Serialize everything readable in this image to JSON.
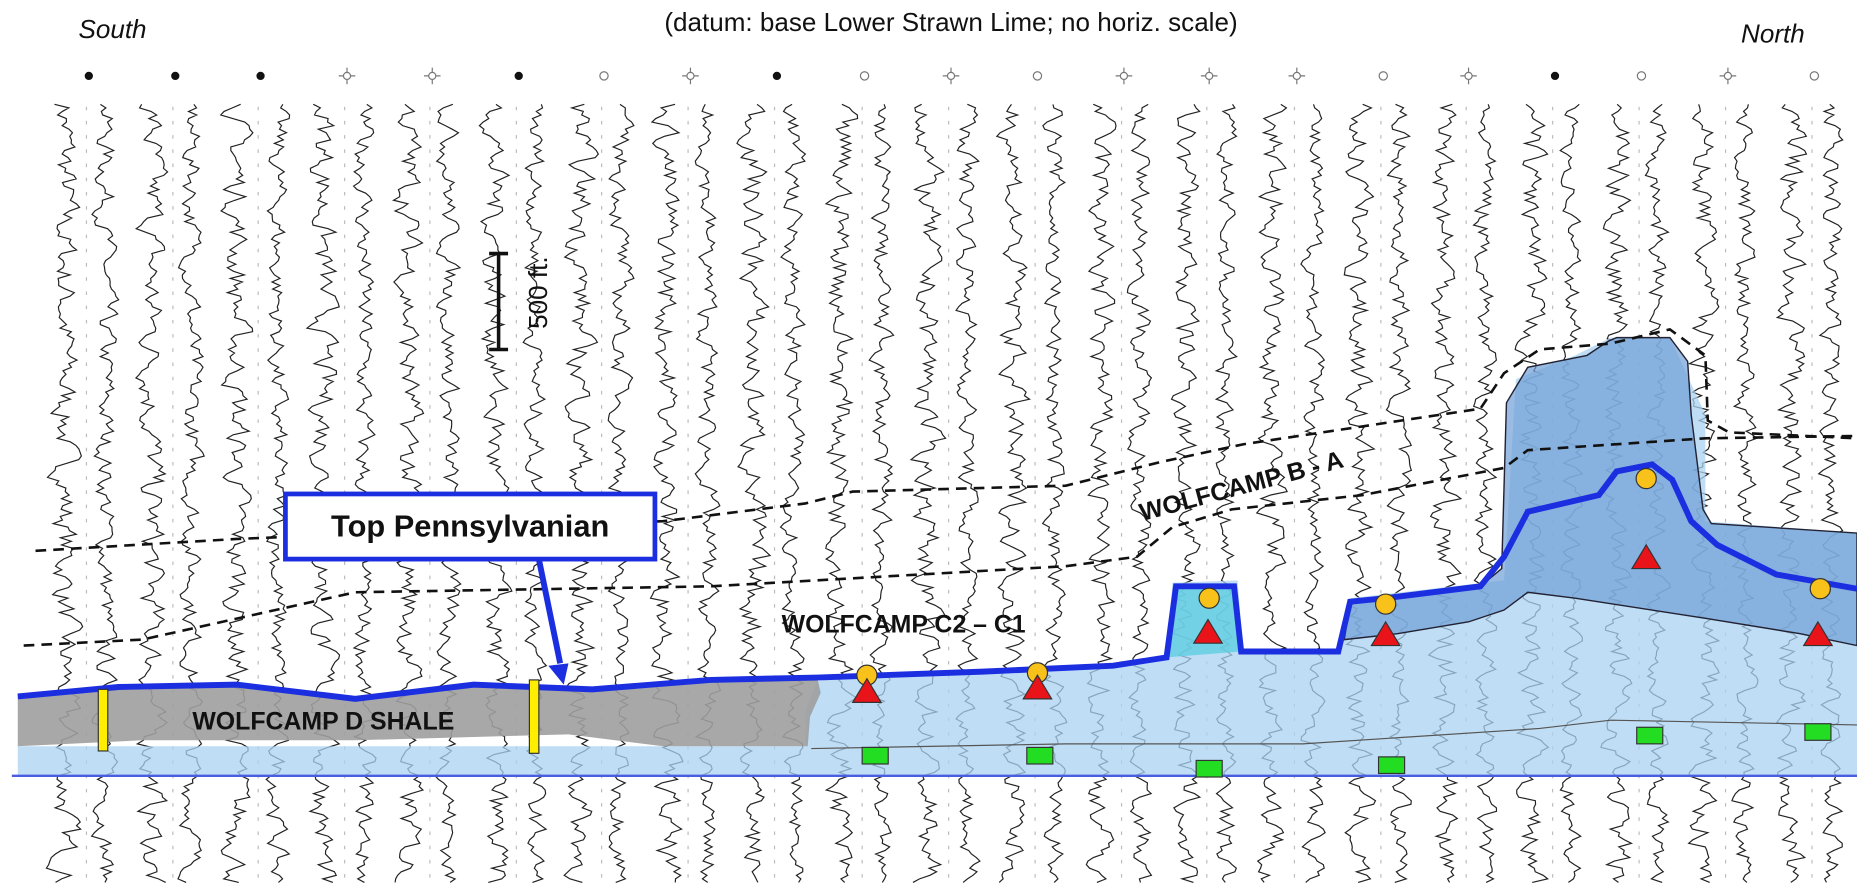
{
  "header": {
    "south": "South",
    "subtitle": "(datum: base Lower Strawn Lime; no horiz. scale)",
    "north": "North"
  },
  "scale_label": "500 ft.",
  "labels": {
    "top_pennsylvanian": "Top Pennsylvanian",
    "wolfcamp_ba": "WOLFCAMP B - A",
    "wolfcamp_c": "WOLFCAMP C2 – C1",
    "wolfcamp_d": "WOLFCAMP D SHALE"
  }
}
